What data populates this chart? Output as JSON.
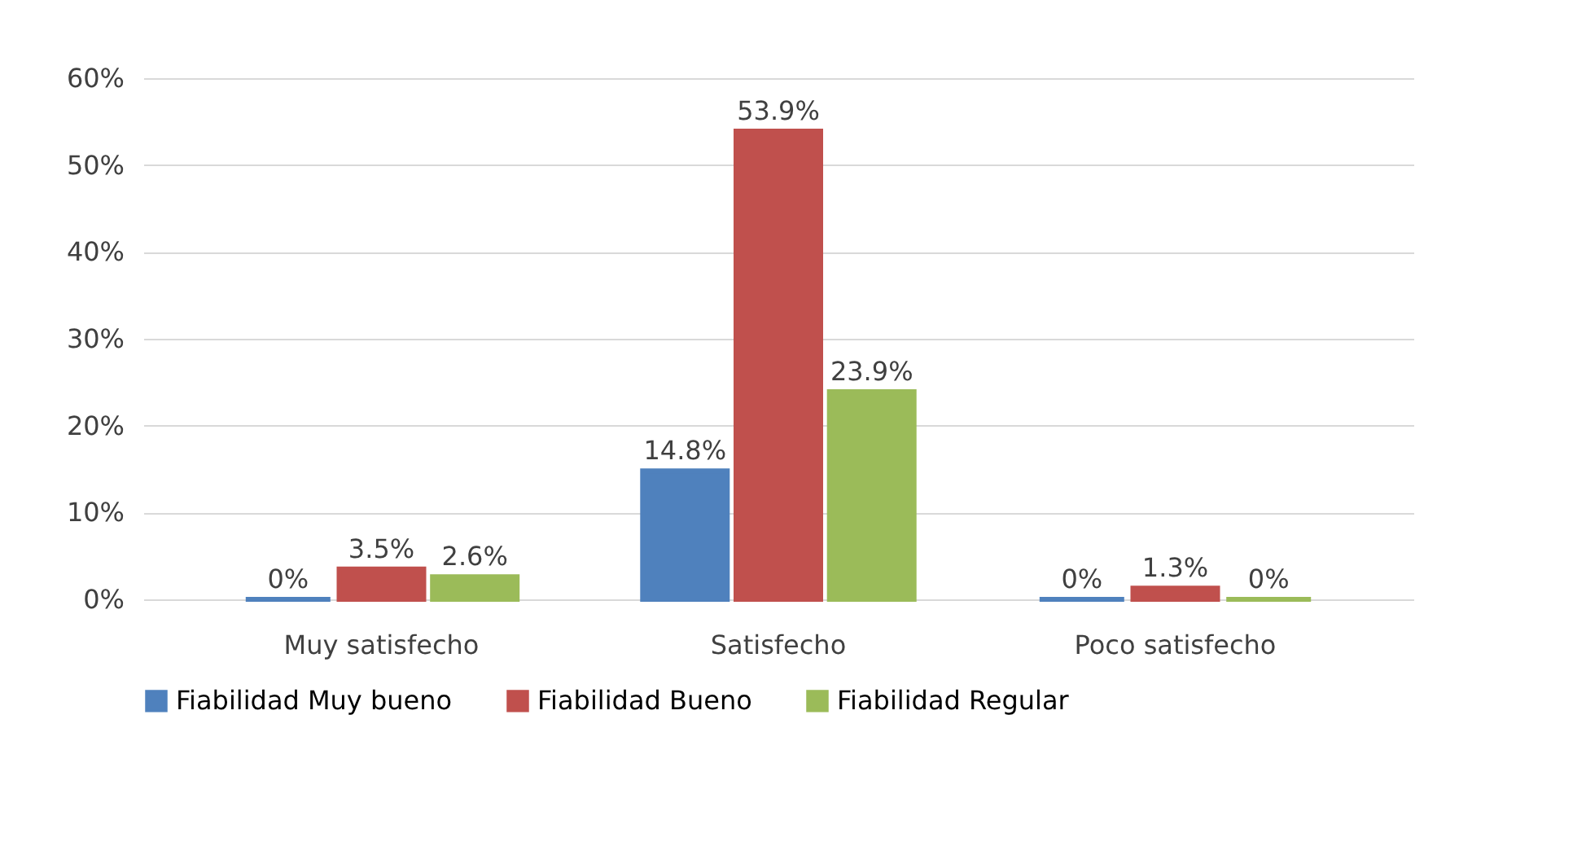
{
  "chart_data": {
    "type": "bar",
    "categories": [
      "Muy satisfecho",
      "Satisfecho",
      "Poco satisfecho"
    ],
    "series": [
      {
        "name": "Fiabilidad Muy bueno",
        "color": "#4f81bd",
        "values": [
          0,
          14.8,
          0
        ],
        "value_labels": [
          "0%",
          "14.8%",
          "0%"
        ]
      },
      {
        "name": "Fiabilidad Bueno",
        "color": "#c0504d",
        "values": [
          3.5,
          53.9,
          1.3
        ],
        "value_labels": [
          "3.5%",
          "53.9%",
          "1.3%"
        ]
      },
      {
        "name": "Fiabilidad Regular",
        "color": "#9bbb59",
        "values": [
          2.6,
          23.9,
          0
        ],
        "value_labels": [
          "2.6%",
          "23.9%",
          "0%"
        ]
      }
    ],
    "ylim": [
      0,
      60
    ],
    "yticks": [
      {
        "value": 0,
        "label": "0%"
      },
      {
        "value": 10,
        "label": "10%"
      },
      {
        "value": 20,
        "label": "20%"
      },
      {
        "value": 30,
        "label": "30%"
      },
      {
        "value": 40,
        "label": "40%"
      },
      {
        "value": 50,
        "label": "50%"
      },
      {
        "value": 60,
        "label": "60%"
      }
    ],
    "grid": "y",
    "legend": "bottom"
  }
}
